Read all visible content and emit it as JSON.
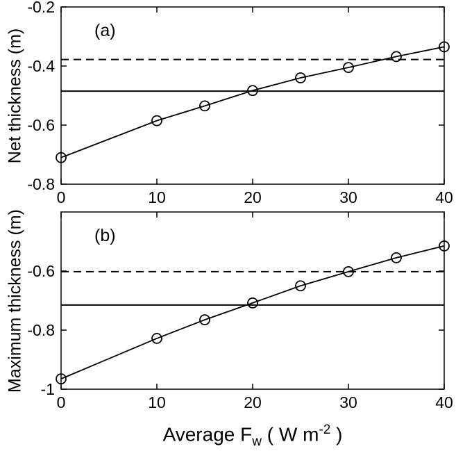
{
  "chart_data": [
    {
      "type": "line",
      "panel_label": "(a)",
      "ylabel": "Net thickness (m)",
      "x": [
        0,
        10,
        15,
        20,
        25,
        30,
        35,
        40
      ],
      "y": [
        -0.71,
        -0.585,
        -0.535,
        -0.483,
        -0.44,
        -0.405,
        -0.368,
        -0.335
      ],
      "marker": "circle",
      "line_color": "#000000",
      "xlim": [
        0,
        40
      ],
      "ylim": [
        -0.8,
        -0.2
      ],
      "xticks": [
        0,
        10,
        20,
        30,
        40
      ],
      "xtick_labels": [
        "0",
        "10",
        "20",
        "30",
        "40"
      ],
      "yticks": [
        -0.2,
        -0.4,
        -0.6,
        -0.8
      ],
      "ytick_labels": [
        "-0.2",
        "-0.4",
        "-0.6",
        "-0.8"
      ],
      "grid": false,
      "ref_lines": [
        {
          "style": "dashed",
          "y": -0.378
        },
        {
          "style": "solid",
          "y": -0.485
        }
      ]
    },
    {
      "type": "line",
      "panel_label": "(b)",
      "ylabel": "Maximum thickness (m)",
      "xlabel": "Average Fw ( W m-2 )",
      "x": [
        0,
        10,
        15,
        20,
        25,
        30,
        35,
        40
      ],
      "y": [
        -0.965,
        -0.828,
        -0.765,
        -0.708,
        -0.65,
        -0.602,
        -0.555,
        -0.515
      ],
      "marker": "circle",
      "line_color": "#000000",
      "xlim": [
        0,
        40
      ],
      "ylim": [
        -1.0,
        -0.4
      ],
      "xticks": [
        0,
        10,
        20,
        30,
        40
      ],
      "xtick_labels": [
        "0",
        "10",
        "20",
        "30",
        "40"
      ],
      "yticks": [
        -0.6,
        -0.8,
        -1.0
      ],
      "ytick_labels": [
        "-0.6",
        "-0.8",
        "-1"
      ],
      "grid": false,
      "ref_lines": [
        {
          "style": "dashed",
          "y": -0.602
        },
        {
          "style": "solid",
          "y": -0.715
        }
      ]
    }
  ],
  "xlabel": {
    "part1": "Average F",
    "sub": "w",
    "part2": " ( W m",
    "sup": "-2",
    "part3": " )"
  }
}
